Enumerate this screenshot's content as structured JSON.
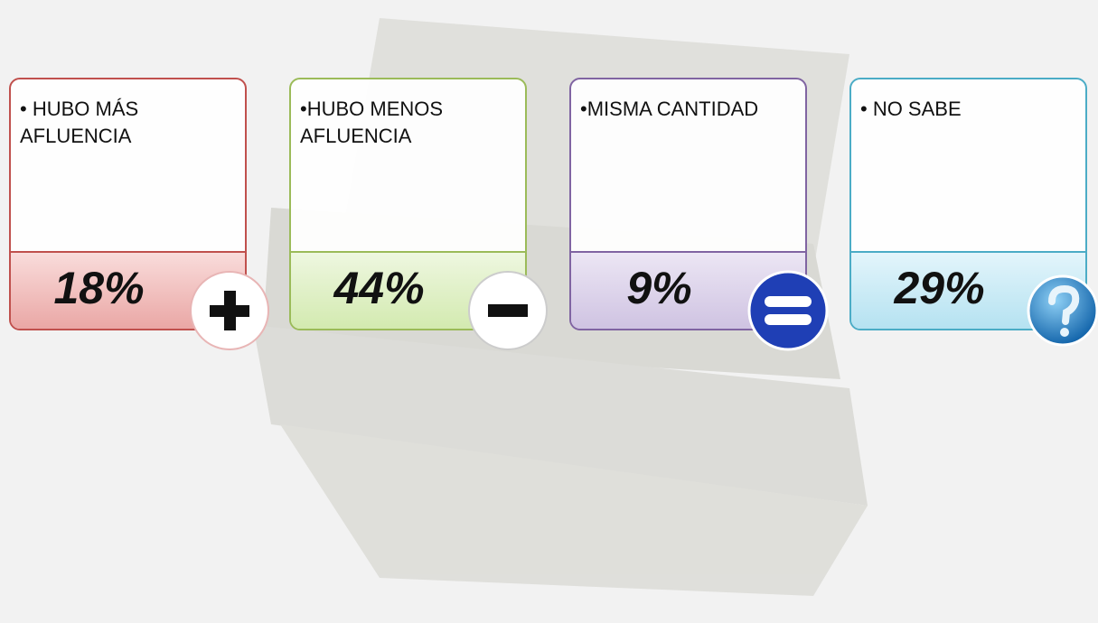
{
  "cards": [
    {
      "label": "• HUBO MÁS AFLUENCIA",
      "percent": "18%"
    },
    {
      "label": "•HUBO MENOS AFLUENCIA",
      "percent": "44%"
    },
    {
      "label": "•MISMA CANTIDAD",
      "percent": "9%"
    },
    {
      "label": "• NO SABE",
      "percent": "29%"
    }
  ]
}
